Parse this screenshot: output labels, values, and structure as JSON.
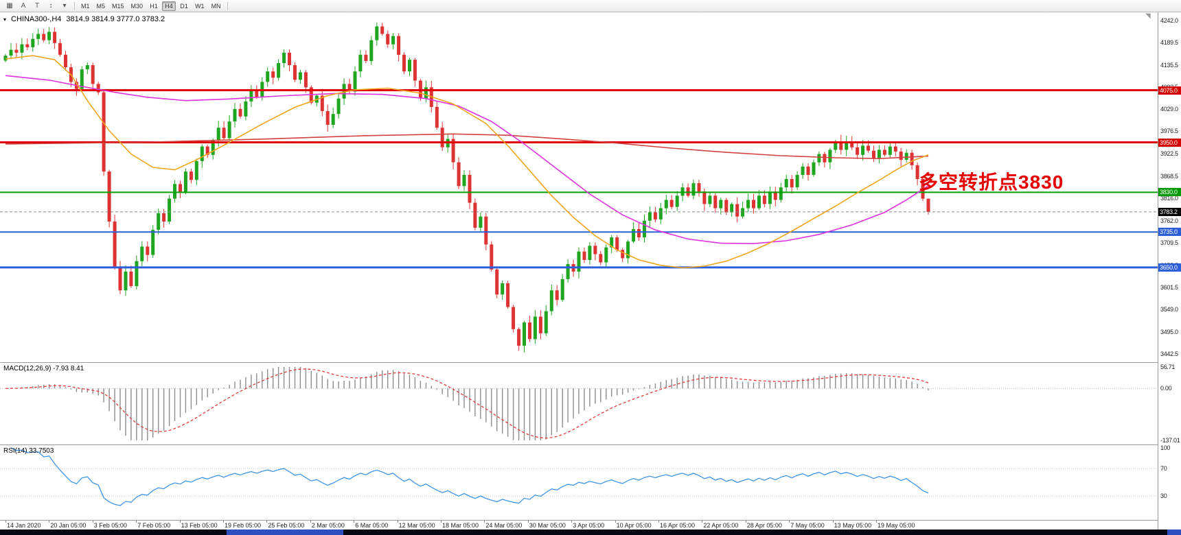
{
  "window": {
    "taskbar_color": "#07080f",
    "taskbar_accent": "#2d4fc0"
  },
  "toolbar": {
    "icons": [
      {
        "name": "chart-window-icon",
        "glyph": "▦"
      },
      {
        "name": "arrow-tool-icon",
        "glyph": "A"
      },
      {
        "name": "text-tool-icon",
        "glyph": "T"
      },
      {
        "name": "scroll-tool-icon",
        "glyph": "↕"
      },
      {
        "name": "dropdown-caret-icon",
        "glyph": "▾"
      }
    ],
    "timeframes": [
      "M1",
      "M5",
      "M15",
      "M30",
      "H1",
      "H4",
      "D1",
      "W1",
      "MN"
    ],
    "active_timeframe": "H4"
  },
  "symbol_info": {
    "marker": "▾",
    "name": "CHINA300-,H4",
    "ohlc": "3814.9 3814.9 3777.0 3783.2"
  },
  "annotation": {
    "text": "多空转折点3830",
    "color": "#e60000"
  },
  "price_axis": {
    "min": 3442.5,
    "max": 4242.0,
    "ticks": [
      4242.0,
      4189.5,
      4135.5,
      4082.5,
      4029.0,
      3976.5,
      3922.5,
      3868.5,
      3816.0,
      3762.0,
      3709.5,
      3655.5,
      3601.5,
      3549.0,
      3495.0,
      3442.5
    ]
  },
  "current_price": {
    "value": 3783.2,
    "badge_bg": "#000000"
  },
  "palette": {
    "up": "#1fa51f",
    "down": "#dd3333",
    "macd_hist": "#8c8c8c",
    "macd_signal": "#e23b3b",
    "rsi_line": "#3e95e8",
    "rsi_level_line": "#c0c0c0"
  },
  "chart_data": {
    "type": "candlestick",
    "symbol": "CHINA300-",
    "timeframe": "H4",
    "ohlc_current": {
      "open": 3814.9,
      "high": 3814.9,
      "low": 3777.0,
      "close": 3783.2
    },
    "last_candle": {
      "open": 3814.9,
      "high": 3814.9,
      "low": 3777.0,
      "close": 3783.2
    },
    "closes": [
      4158,
      4172,
      4165,
      4185,
      4178,
      4198,
      4210,
      4195,
      4215,
      4188,
      4160,
      4130,
      4095,
      4078,
      4125,
      4135,
      4090,
      4070,
      3880,
      3760,
      3650,
      3595,
      3640,
      3605,
      3665,
      3700,
      3680,
      3740,
      3780,
      3760,
      3815,
      3850,
      3830,
      3880,
      3860,
      3905,
      3940,
      3920,
      3955,
      3985,
      3960,
      4000,
      4030,
      4012,
      4048,
      4075,
      4058,
      4095,
      4120,
      4105,
      4140,
      4165,
      4135,
      4100,
      4118,
      4082,
      4045,
      4062,
      4025,
      3992,
      4018,
      4055,
      4090,
      4072,
      4120,
      4160,
      4145,
      4195,
      4228,
      4210,
      4185,
      4205,
      4160,
      4120,
      4148,
      4098,
      4055,
      4082,
      4035,
      3985,
      3938,
      3958,
      3902,
      3845,
      3872,
      3805,
      3745,
      3772,
      3705,
      3645,
      3585,
      3612,
      3555,
      3502,
      3462,
      3518,
      3478,
      3532,
      3492,
      3545,
      3595,
      3572,
      3622,
      3658,
      3640,
      3688,
      3668,
      3702,
      3682,
      3662,
      3698,
      3722,
      3692,
      3672,
      3712,
      3742,
      3722,
      3762,
      3782,
      3765,
      3792,
      3812,
      3795,
      3822,
      3842,
      3822,
      3852,
      3832,
      3802,
      3822,
      3792,
      3812,
      3782,
      3802,
      3772,
      3792,
      3812,
      3792,
      3822,
      3802,
      3832,
      3812,
      3842,
      3862,
      3842,
      3872,
      3892,
      3872,
      3902,
      3922,
      3902,
      3932,
      3952,
      3932,
      3950,
      3938,
      3920,
      3942,
      3930,
      3912,
      3932,
      3920,
      3940,
      3928,
      3908,
      3925,
      3895,
      3862,
      3814.9,
      3783.2
    ],
    "horizontal_lines": [
      {
        "price": 4075.0,
        "color": "#e00000",
        "width": 3,
        "badge": "#d40000"
      },
      {
        "price": 3950.0,
        "color": "#e00000",
        "width": 3,
        "badge": "#d40000"
      },
      {
        "price": 3830.0,
        "color": "#00a000",
        "width": 2,
        "badge": "#009a00"
      },
      {
        "price": 3735.0,
        "color": "#2b5fd9",
        "width": 2,
        "badge": "#2b5fd9"
      },
      {
        "price": 3650.0,
        "color": "#2b5fd9",
        "width": 3,
        "badge": "#2b5fd9"
      }
    ],
    "moving_averages": [
      {
        "name": "ma-slow-red",
        "color": "#d24040",
        "anchors": [
          [
            0,
            3946
          ],
          [
            25,
            3950
          ],
          [
            48,
            3958
          ],
          [
            66,
            3966
          ],
          [
            82,
            3970
          ],
          [
            92,
            3967
          ],
          [
            102,
            3958
          ],
          [
            112,
            3948
          ],
          [
            122,
            3936
          ],
          [
            132,
            3926
          ],
          [
            142,
            3918
          ],
          [
            152,
            3913
          ],
          [
            160,
            3911
          ],
          [
            169,
            3917
          ]
        ]
      },
      {
        "name": "ma-mid-magenta",
        "color": "#dd33dd",
        "anchors": [
          [
            0,
            4110
          ],
          [
            8,
            4099
          ],
          [
            14,
            4084
          ],
          [
            20,
            4070
          ],
          [
            26,
            4058
          ],
          [
            33,
            4050
          ],
          [
            41,
            4054
          ],
          [
            50,
            4061
          ],
          [
            60,
            4067
          ],
          [
            69,
            4065
          ],
          [
            77,
            4055
          ],
          [
            83,
            4037
          ],
          [
            89,
            4000
          ],
          [
            95,
            3946
          ],
          [
            101,
            3886
          ],
          [
            107,
            3826
          ],
          [
            113,
            3776
          ],
          [
            119,
            3740
          ],
          [
            125,
            3718
          ],
          [
            131,
            3708
          ],
          [
            137,
            3707
          ],
          [
            143,
            3714
          ],
          [
            149,
            3729
          ],
          [
            155,
            3752
          ],
          [
            161,
            3782
          ],
          [
            165,
            3812
          ],
          [
            169,
            3846
          ]
        ]
      },
      {
        "name": "ma-fast-orange",
        "color": "#efa61e",
        "anchors": [
          [
            0,
            4150
          ],
          [
            5,
            4158
          ],
          [
            9,
            4148
          ],
          [
            12,
            4112
          ],
          [
            15,
            4050
          ],
          [
            19,
            3978
          ],
          [
            23,
            3922
          ],
          [
            27,
            3890
          ],
          [
            31,
            3884
          ],
          [
            35,
            3908
          ],
          [
            41,
            3950
          ],
          [
            47,
            3994
          ],
          [
            53,
            4034
          ],
          [
            59,
            4062
          ],
          [
            64,
            4076
          ],
          [
            70,
            4080
          ],
          [
            76,
            4068
          ],
          [
            82,
            4042
          ],
          [
            88,
            3995
          ],
          [
            92,
            3942
          ],
          [
            96,
            3882
          ],
          [
            100,
            3822
          ],
          [
            104,
            3770
          ],
          [
            108,
            3726
          ],
          [
            112,
            3692
          ],
          [
            116,
            3668
          ],
          [
            120,
            3655
          ],
          [
            124,
            3649
          ],
          [
            128,
            3653
          ],
          [
            132,
            3665
          ],
          [
            136,
            3685
          ],
          [
            140,
            3709
          ],
          [
            144,
            3737
          ],
          [
            148,
            3767
          ],
          [
            152,
            3797
          ],
          [
            156,
            3829
          ],
          [
            160,
            3859
          ],
          [
            163,
            3883
          ],
          [
            166,
            3905
          ],
          [
            169,
            3920
          ]
        ]
      }
    ],
    "time_labels": [
      "14 Jan 2020",
      "20 Jan 05:00",
      "3 Feb 05:00",
      "7 Feb 05:00",
      "13 Feb 05:00",
      "19 Feb 05:00",
      "25 Feb 05:00",
      "2 Mar 05:00",
      "6 Mar 05:00",
      "12 Mar 05:00",
      "18 Mar 05:00",
      "24 Mar 05:00",
      "30 Mar 05:00",
      "3 Apr 05:00",
      "10 Apr 05:00",
      "16 Apr 05:00",
      "22 Apr 05:00",
      "28 Apr 05:00",
      "7 May 05:00",
      "13 May 05:00",
      "19 May 05:00"
    ],
    "macd": {
      "label": "MACD(12,26,9) -7.93 8.41",
      "fast": 12,
      "slow": 26,
      "signal": 9,
      "value": -7.93,
      "signal_value": 8.41,
      "axis_max": 56.71,
      "axis_min": -137.01,
      "axis_labels": [
        "56.71",
        "0.00",
        "-137.01"
      ]
    },
    "rsi": {
      "label": "RSI(14) 33.7503",
      "period": 14,
      "value": 33.7503,
      "levels": [
        70,
        30
      ],
      "axis_labels": [
        "100",
        "70",
        "30"
      ]
    }
  }
}
